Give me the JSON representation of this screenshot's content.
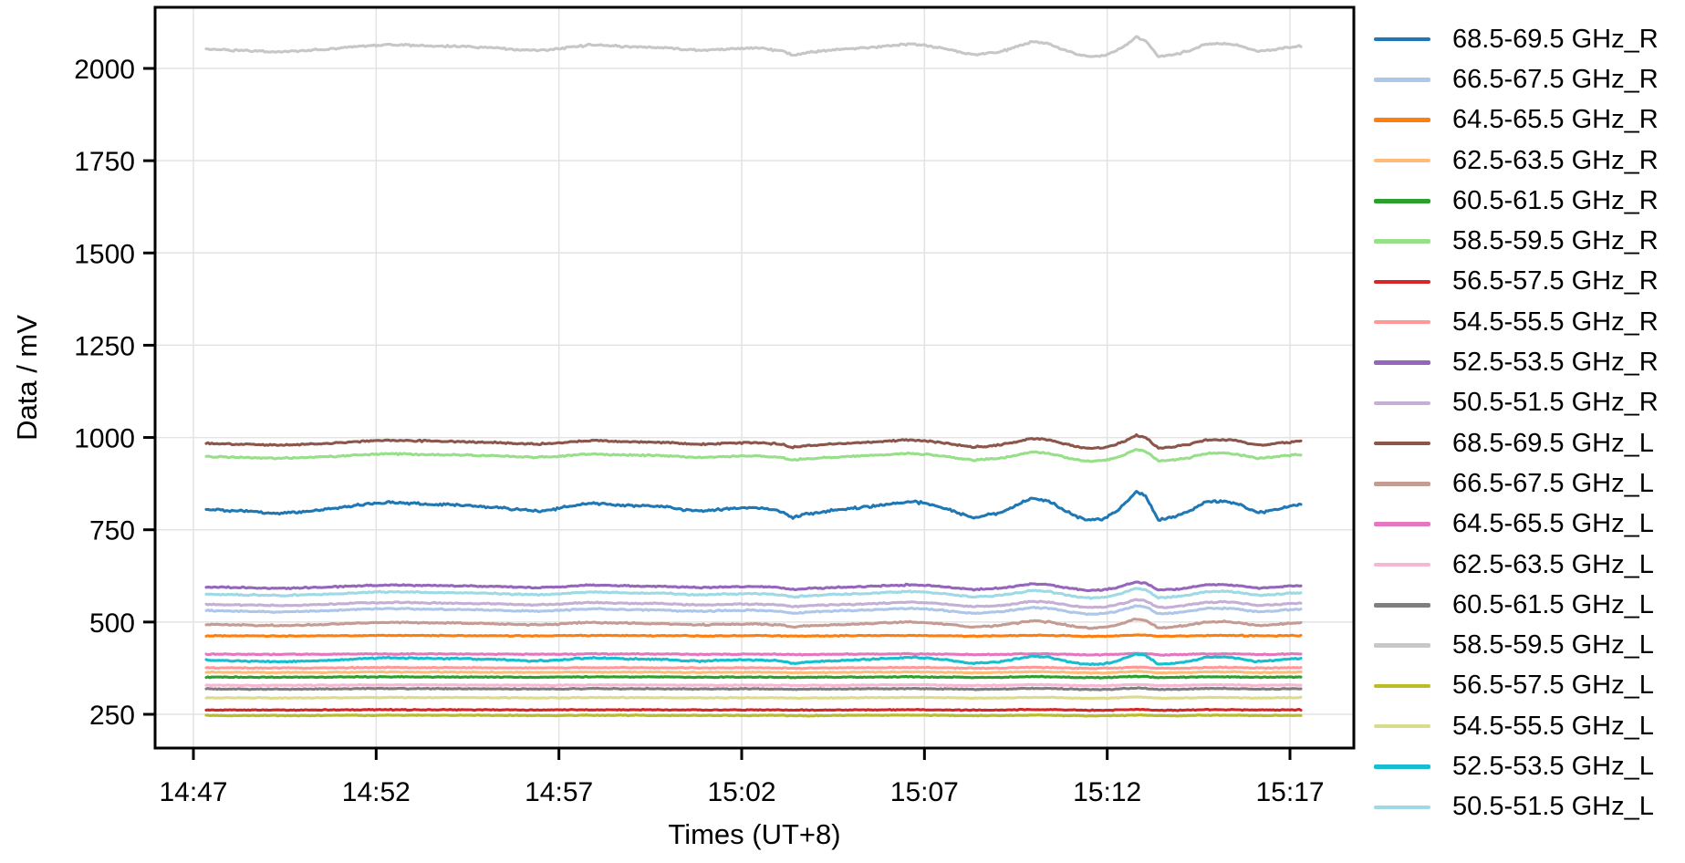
{
  "chart_data": {
    "type": "line",
    "title": "",
    "xlabel": "Times (UT+8)",
    "ylabel": "Data / mV",
    "x_tick_labels": [
      "14:47",
      "14:52",
      "14:57",
      "15:02",
      "15:07",
      "15:12",
      "15:17"
    ],
    "x_tick_minutes": [
      0,
      5,
      10,
      15,
      20,
      25,
      30
    ],
    "y_tick_values": [
      250,
      500,
      750,
      1000,
      1250,
      1500,
      1750,
      2000
    ],
    "y_axis_range_mv": [
      158,
      2166
    ],
    "x_axis_range_minutes": [
      -1.05,
      31.75
    ],
    "data_t_range_minutes": [
      0.35,
      30.3
    ],
    "grid": "on",
    "legend_position": "right-outside",
    "series": [
      {
        "name": "68.5-69.5 GHz_R",
        "color": "#1f77b4",
        "base_mv": 810,
        "wiggle_scale": 1.0
      },
      {
        "name": "66.5-67.5 GHz_R",
        "color": "#aec7e8",
        "base_mv": 532,
        "wiggle_scale": 0.3
      },
      {
        "name": "64.5-65.5 GHz_R",
        "color": "#ff7f0e",
        "base_mv": 463,
        "wiggle_scale": 0.05
      },
      {
        "name": "62.5-63.5 GHz_R",
        "color": "#ffbb78",
        "base_mv": 364,
        "wiggle_scale": 0.05
      },
      {
        "name": "60.5-61.5 GHz_R",
        "color": "#2ca02c",
        "base_mv": 351,
        "wiggle_scale": 0.04
      },
      {
        "name": "58.5-59.5 GHz_R",
        "color": "#98df8a",
        "base_mv": 950,
        "wiggle_scale": 0.42
      },
      {
        "name": "56.5-57.5 GHz_R",
        "color": "#d62728",
        "base_mv": 262,
        "wiggle_scale": 0.03
      },
      {
        "name": "54.5-55.5 GHz_R",
        "color": "#ff9896",
        "base_mv": 376,
        "wiggle_scale": 0.05
      },
      {
        "name": "52.5-53.5 GHz_R",
        "color": "#9467bd",
        "base_mv": 596,
        "wiggle_scale": 0.3
      },
      {
        "name": "50.5-51.5 GHz_R",
        "color": "#c5b0d5",
        "base_mv": 549,
        "wiggle_scale": 0.28
      },
      {
        "name": "68.5-69.5 GHz_L",
        "color": "#8c564b",
        "base_mv": 986,
        "wiggle_scale": 0.45
      },
      {
        "name": "66.5-67.5 GHz_L",
        "color": "#c49c94",
        "base_mv": 495,
        "wiggle_scale": 0.32
      },
      {
        "name": "64.5-65.5 GHz_L",
        "color": "#e377c2",
        "base_mv": 413,
        "wiggle_scale": 0.05
      },
      {
        "name": "62.5-63.5 GHz_L",
        "color": "#f7b6d2",
        "base_mv": 329,
        "wiggle_scale": 0.04
      },
      {
        "name": "60.5-61.5 GHz_L",
        "color": "#7f7f7f",
        "base_mv": 319,
        "wiggle_scale": 0.05
      },
      {
        "name": "58.5-59.5 GHz_L",
        "color": "#c7c7c7",
        "base_mv": 2055,
        "wiggle_scale": 0.68
      },
      {
        "name": "56.5-57.5 GHz_L",
        "color": "#bcbd22",
        "base_mv": 247,
        "wiggle_scale": 0.03
      },
      {
        "name": "54.5-55.5 GHz_L",
        "color": "#dbdb8d",
        "base_mv": 295,
        "wiggle_scale": 0.04
      },
      {
        "name": "52.5-53.5 GHz_L",
        "color": "#17becf",
        "base_mv": 398,
        "wiggle_scale": 0.38
      },
      {
        "name": "50.5-51.5 GHz_L",
        "color": "#9edae5",
        "base_mv": 577,
        "wiggle_scale": 0.34
      }
    ],
    "shared_wiggle": {
      "comment": "deviation in mV (for wiggle_scale=1.0) vs minutes after 14:47; all channels are correlated copies of this profile",
      "t_minutes": [
        0.35,
        0.9,
        1.4,
        1.9,
        2.35,
        2.8,
        3.3,
        3.9,
        4.4,
        4.9,
        5.4,
        5.9,
        6.4,
        6.9,
        7.4,
        7.9,
        8.4,
        8.9,
        9.4,
        9.9,
        10.4,
        10.9,
        11.4,
        11.9,
        12.4,
        12.9,
        13.4,
        13.9,
        14.4,
        14.9,
        15.4,
        15.9,
        16.15,
        16.4,
        16.7,
        17.1,
        17.6,
        18.1,
        18.6,
        19.1,
        19.6,
        20.1,
        20.6,
        21.0,
        21.35,
        21.7,
        22.1,
        22.5,
        22.95,
        23.4,
        23.8,
        24.2,
        24.55,
        24.9,
        25.2,
        25.5,
        25.8,
        26.05,
        26.4,
        26.8,
        27.2,
        27.7,
        28.2,
        28.6,
        29.1,
        29.5,
        29.9,
        30.3
      ],
      "deviation_mv": [
        -4,
        -7,
        -10,
        -13,
        -15,
        -12,
        -8,
        -2,
        6,
        11,
        14,
        12,
        9,
        8,
        6,
        3,
        0,
        -6,
        -9,
        -4,
        6,
        13,
        9,
        6,
        4,
        2,
        -6,
        -9,
        -5,
        -2,
        0,
        -7,
        -13,
        -28,
        -19,
        -13,
        -7,
        -2,
        4,
        10,
        17,
        10,
        -3,
        -17,
        -27,
        -21,
        -13,
        5,
        26,
        17,
        -6,
        -26,
        -35,
        -30,
        -14,
        12,
        43,
        30,
        -33,
        -26,
        -12,
        16,
        18,
        10,
        -14,
        -8,
        2,
        8
      ]
    }
  },
  "legend": {
    "entries": [
      "68.5-69.5 GHz_R",
      "66.5-67.5 GHz_R",
      "64.5-65.5 GHz_R",
      "62.5-63.5 GHz_R",
      "60.5-61.5 GHz_R",
      "58.5-59.5 GHz_R",
      "56.5-57.5 GHz_R",
      "54.5-55.5 GHz_R",
      "52.5-53.5 GHz_R",
      "50.5-51.5 GHz_R",
      "68.5-69.5 GHz_L",
      "66.5-67.5 GHz_L",
      "64.5-65.5 GHz_L",
      "62.5-63.5 GHz_L",
      "60.5-61.5 GHz_L",
      "58.5-59.5 GHz_L",
      "56.5-57.5 GHz_L",
      "54.5-55.5 GHz_L",
      "52.5-53.5 GHz_L",
      "50.5-51.5 GHz_L"
    ]
  },
  "style_colors": {
    "axis": "#000000",
    "gridline": "#e3e3e3",
    "background": "#ffffff"
  }
}
